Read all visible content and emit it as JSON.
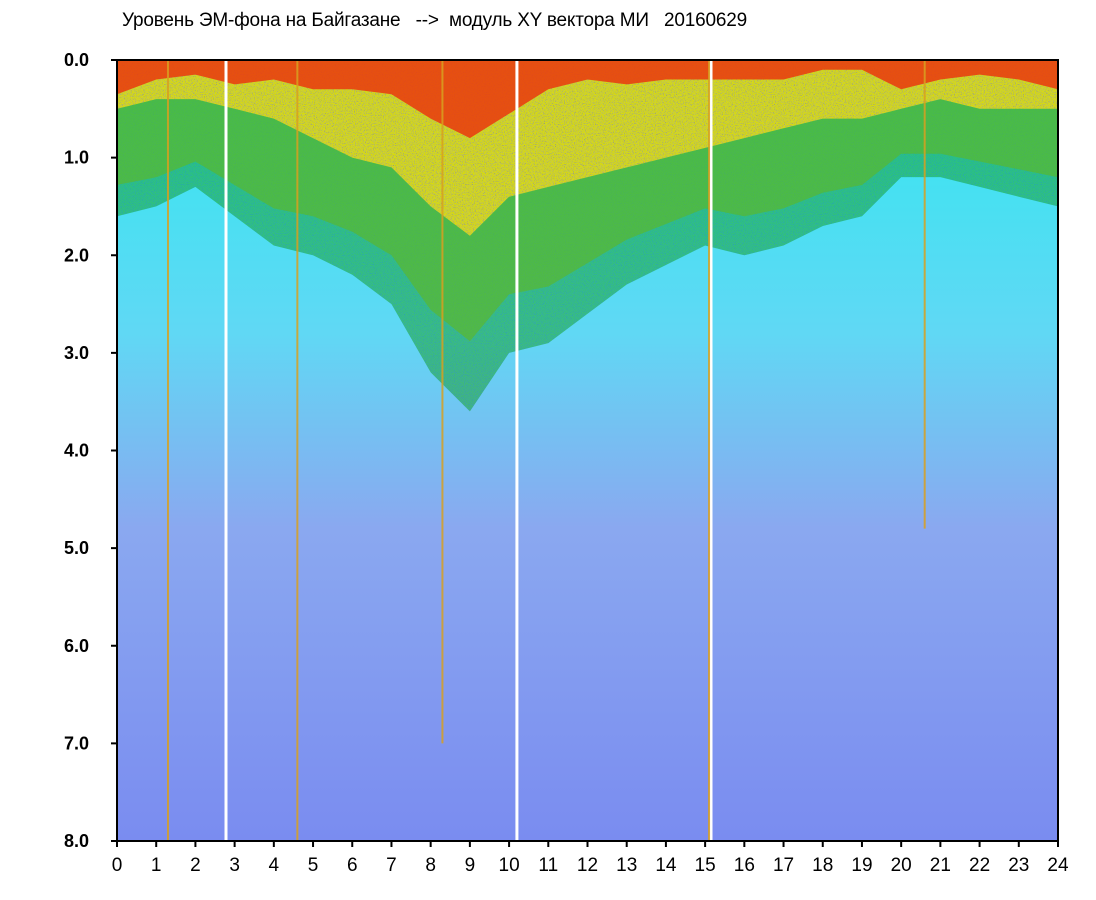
{
  "chart_data": {
    "type": "heatmap",
    "title": "Уровень ЭМ-фона на Байгазане   -->  модуль XY вектора МИ   20160629",
    "xlabel": "",
    "ylabel": "",
    "xlim": [
      0,
      24
    ],
    "ylim": [
      0,
      8
    ],
    "y_inverted": true,
    "x_ticks": [
      "0",
      "1",
      "2",
      "3",
      "4",
      "5",
      "6",
      "7",
      "8",
      "9",
      "10",
      "11",
      "12",
      "13",
      "14",
      "15",
      "16",
      "17",
      "18",
      "19",
      "20",
      "21",
      "22",
      "23",
      "24"
    ],
    "y_ticks": [
      "0.0",
      "1.0",
      "2.0",
      "3.0",
      "4.0",
      "5.0",
      "6.0",
      "7.0",
      "8.0"
    ],
    "grid": false,
    "legend": "none",
    "colormap": [
      "#0000cc",
      "#6a6aee",
      "#9aa8f0",
      "#30e8f0",
      "#10a010",
      "#f0e000",
      "#e84010"
    ],
    "density_front": {
      "x": [
        0,
        1,
        2,
        3,
        4,
        5,
        6,
        7,
        8,
        9,
        10,
        11,
        12,
        13,
        14,
        15,
        16,
        17,
        18,
        19,
        20,
        21,
        22,
        23,
        24
      ],
      "green_depth": [
        1.6,
        1.5,
        1.3,
        1.6,
        1.9,
        2.0,
        2.2,
        2.5,
        3.2,
        3.6,
        3.0,
        2.9,
        2.6,
        2.3,
        2.1,
        1.9,
        2.0,
        1.9,
        1.7,
        1.6,
        1.2,
        1.2,
        1.3,
        1.4,
        1.5
      ],
      "yellow_depth": [
        0.5,
        0.4,
        0.4,
        0.5,
        0.6,
        0.8,
        1.0,
        1.1,
        1.5,
        1.8,
        1.4,
        1.3,
        1.2,
        1.1,
        1.0,
        0.9,
        0.8,
        0.7,
        0.6,
        0.6,
        0.5,
        0.4,
        0.5,
        0.5,
        0.5
      ],
      "red_depth": [
        0.35,
        0.2,
        0.15,
        0.25,
        0.2,
        0.3,
        0.3,
        0.35,
        0.6,
        0.8,
        0.55,
        0.3,
        0.2,
        0.25,
        0.2,
        0.2,
        0.2,
        0.2,
        0.1,
        0.1,
        0.3,
        0.2,
        0.15,
        0.2,
        0.3
      ]
    },
    "gaps": [
      2.78,
      10.2,
      15.15
    ],
    "spikes": [
      {
        "x": 1.3,
        "depth": 8.0
      },
      {
        "x": 4.6,
        "depth": 8.0
      },
      {
        "x": 8.3,
        "depth": 7.0
      },
      {
        "x": 15.1,
        "depth": 8.0
      },
      {
        "x": 20.6,
        "depth": 4.8
      }
    ]
  }
}
